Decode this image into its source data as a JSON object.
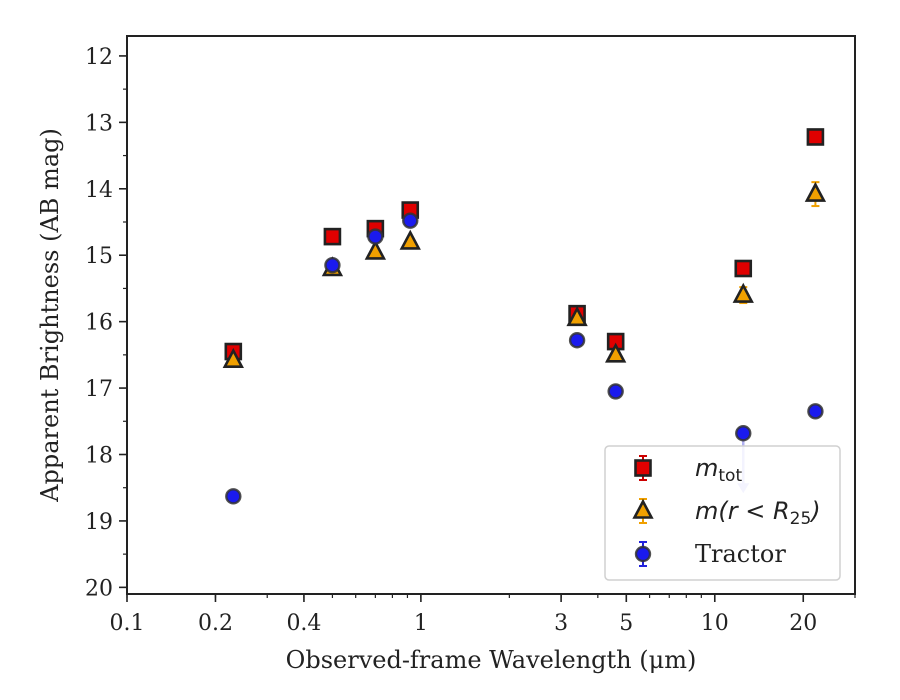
{
  "chart_data": {
    "type": "scatter",
    "title": "",
    "xlabel": "Observed-frame Wavelength (μm)",
    "ylabel": "Apparent Brightness (AB mag)",
    "xscale": "log",
    "xlim": [
      0.1,
      30
    ],
    "ylim": [
      20.1,
      11.7
    ],
    "y_inverted": true,
    "x_ticks": [
      0.1,
      0.2,
      0.4,
      1,
      3,
      5,
      10,
      20
    ],
    "x_tick_labels": [
      "0.1",
      "0.2",
      "0.4",
      "1",
      "3",
      "5",
      "10",
      "20"
    ],
    "y_ticks": [
      12,
      13,
      14,
      15,
      16,
      17,
      18,
      19,
      20
    ],
    "y_tick_labels": [
      "12",
      "13",
      "14",
      "15",
      "16",
      "17",
      "18",
      "19",
      "20"
    ],
    "grid": false,
    "legend_position": "bottom-right",
    "series": [
      {
        "name": "m_tot",
        "legend_label": "m",
        "legend_sub": "tot",
        "marker": "square",
        "color": "#e00000",
        "errcolor": "#cc0000",
        "x": [
          0.23,
          0.5,
          0.7,
          0.92,
          3.4,
          4.6,
          12.5,
          22
        ],
        "y": [
          16.45,
          14.72,
          14.6,
          14.32,
          15.88,
          16.3,
          15.2,
          13.22
        ],
        "yerr": [
          0.05,
          0.05,
          0.05,
          0.05,
          0.05,
          0.05,
          0.06,
          0.05
        ]
      },
      {
        "name": "m(r < R25)",
        "legend_label": "m(r < R",
        "legend_sub": "25",
        "legend_suffix": ")",
        "marker": "triangle",
        "color": "#f0a000",
        "errcolor": "#f0a000",
        "x": [
          0.23,
          0.5,
          0.7,
          0.92,
          3.4,
          4.6,
          12.5,
          22
        ],
        "y": [
          16.58,
          15.2,
          14.95,
          14.8,
          15.95,
          16.5,
          15.6,
          14.08
        ],
        "yerr": [
          0.05,
          0.05,
          0.05,
          0.05,
          0.05,
          0.05,
          0.12,
          0.18
        ]
      },
      {
        "name": "Tractor",
        "legend_label": "Tractor",
        "marker": "circle",
        "color": "#1a1aee",
        "errcolor": "#2222dd",
        "x": [
          0.23,
          0.5,
          0.7,
          0.92,
          3.4,
          4.6,
          12.5,
          22
        ],
        "y": [
          18.63,
          15.15,
          14.72,
          14.48,
          16.28,
          17.05,
          17.68,
          17.35
        ],
        "yerr": [
          0.05,
          0.05,
          0.05,
          0.05,
          0.05,
          0.05,
          0.05,
          0.08
        ],
        "upper_limit_x": 12.5
      }
    ]
  }
}
